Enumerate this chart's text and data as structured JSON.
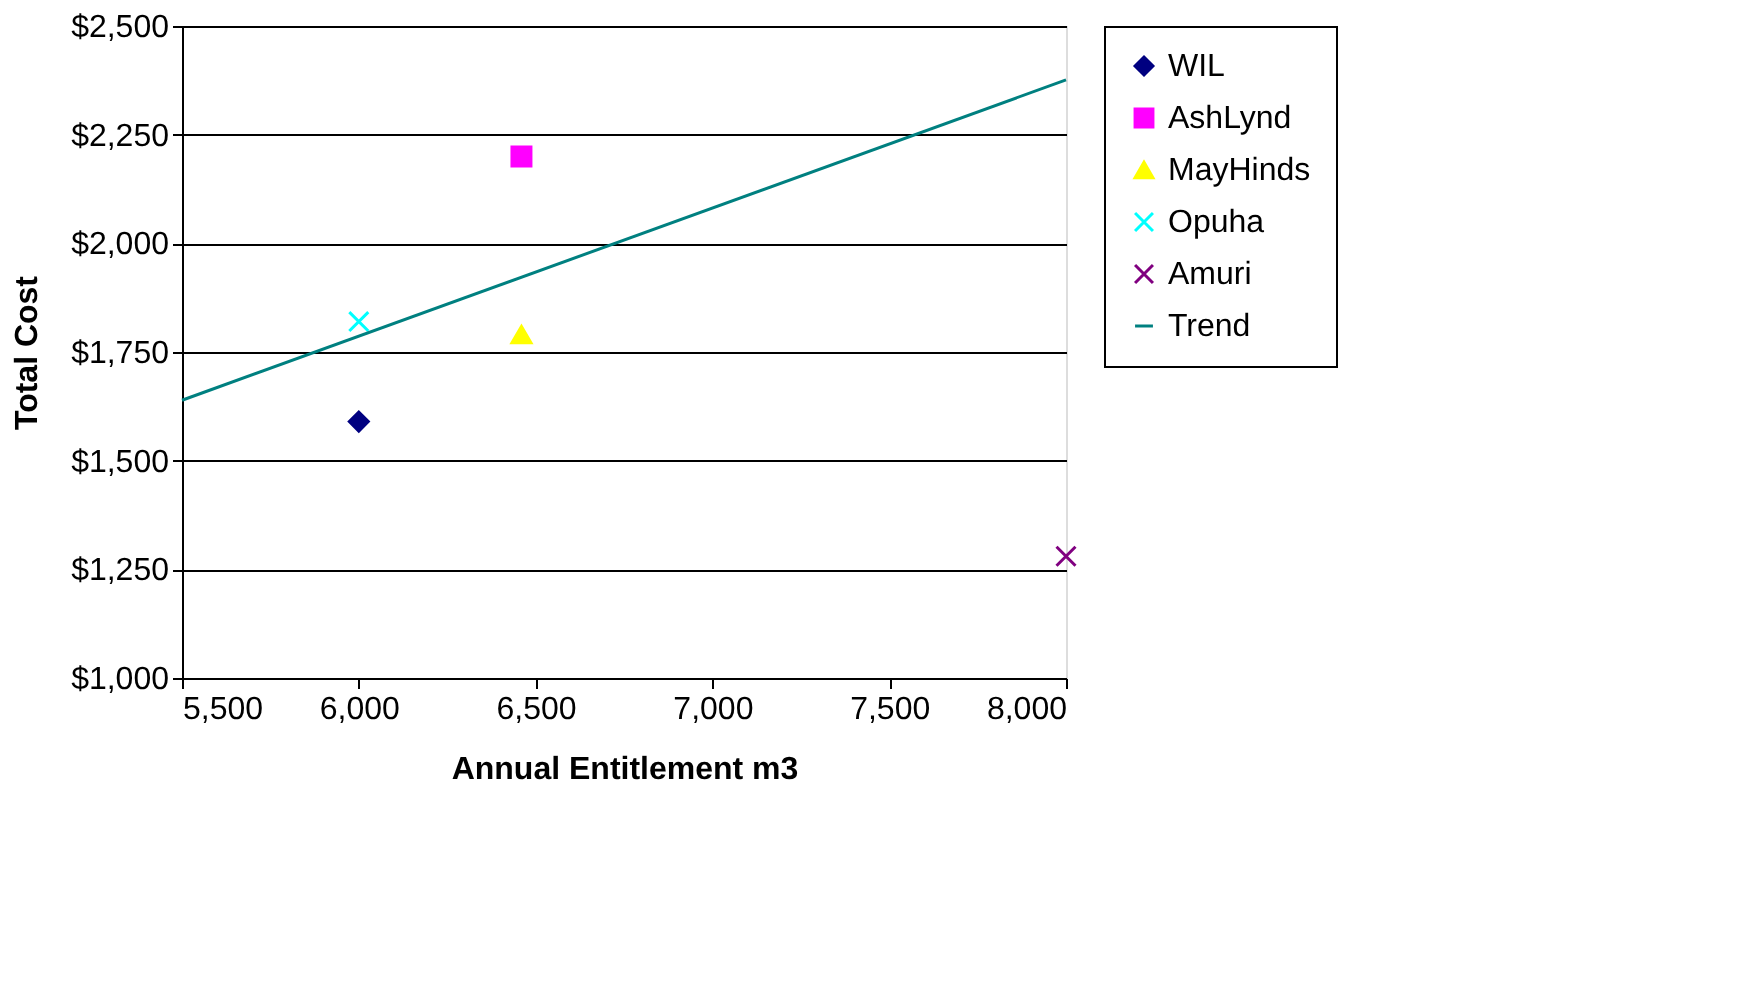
{
  "chart_data": {
    "type": "scatter",
    "xlabel": "Annual Entitlement m3",
    "ylabel": "Total Cost",
    "xlim": [
      5500,
      8000
    ],
    "ylim": [
      1000,
      2500
    ],
    "xticks": [
      {
        "value": 5500,
        "label": "5,500"
      },
      {
        "value": 6000,
        "label": "6,000"
      },
      {
        "value": 6500,
        "label": "6,500"
      },
      {
        "value": 7000,
        "label": "7,000"
      },
      {
        "value": 7500,
        "label": "7,500"
      },
      {
        "value": 8000,
        "label": "8,000"
      }
    ],
    "yticks": [
      {
        "value": 1000,
        "label": "$1,000"
      },
      {
        "value": 1250,
        "label": "$1,250"
      },
      {
        "value": 1500,
        "label": "$1,500"
      },
      {
        "value": 1750,
        "label": "$1,750"
      },
      {
        "value": 2000,
        "label": "$2,000"
      },
      {
        "value": 2250,
        "label": "$2,250"
      },
      {
        "value": 2500,
        "label": "$2,500"
      }
    ],
    "grid": "y",
    "legend": "right",
    "series": [
      {
        "name": "WIL",
        "color": "#000080",
        "marker": "diamond",
        "x": [
          6000
        ],
        "values": [
          1590
        ]
      },
      {
        "name": "AshLynd",
        "color": "#ff00ff",
        "marker": "square",
        "x": [
          6460
        ],
        "values": [
          2200
        ]
      },
      {
        "name": "MayHinds",
        "color": "#ffff00",
        "marker": "triangle",
        "x": [
          6460
        ],
        "values": [
          1790
        ]
      },
      {
        "name": "Opuha",
        "color": "#00ffff",
        "marker": "cross",
        "x": [
          6000
        ],
        "values": [
          1820
        ]
      },
      {
        "name": "Amuri",
        "color": "#800080",
        "marker": "cross",
        "x": [
          8000
        ],
        "values": [
          1280
        ]
      },
      {
        "name": "Trend",
        "type": "line",
        "color": "#008080",
        "marker": "none",
        "line_style": "solid",
        "x": [
          5500,
          8000
        ],
        "values": [
          1639,
          2376
        ]
      }
    ]
  }
}
